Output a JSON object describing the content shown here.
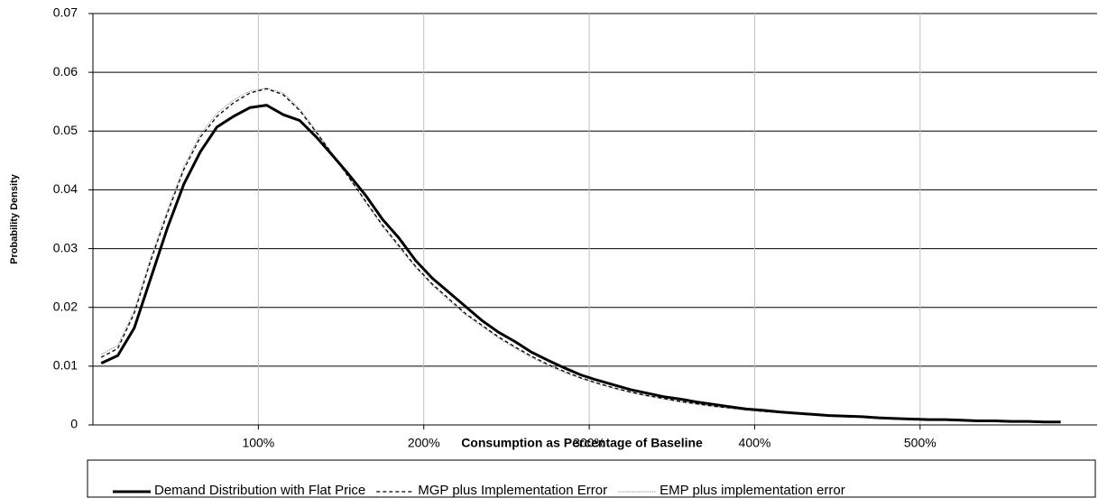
{
  "chart_data": {
    "type": "line",
    "x_label": "Consumption as Percentage of Baseline",
    "y_label": "Probability Density",
    "x": [
      5,
      15,
      25,
      35,
      45,
      55,
      65,
      75,
      85,
      95,
      105,
      115,
      125,
      135,
      145,
      155,
      165,
      175,
      185,
      195,
      205,
      215,
      225,
      235,
      245,
      255,
      265,
      275,
      285,
      295,
      305,
      315,
      325,
      335,
      345,
      355,
      365,
      375,
      385,
      395,
      405,
      415,
      425,
      435,
      445,
      455,
      465,
      475,
      485,
      495,
      505,
      515,
      525,
      535,
      545,
      555,
      565,
      575,
      585
    ],
    "series": [
      {
        "name": "Demand Distribution with Flat Price",
        "color": "#000000",
        "style": "solid",
        "values": [
          0.0105,
          0.0118,
          0.0165,
          0.025,
          0.0335,
          0.041,
          0.0465,
          0.0507,
          0.0525,
          0.054,
          0.0544,
          0.0528,
          0.0518,
          0.049,
          0.0458,
          0.0425,
          0.039,
          0.035,
          0.0318,
          0.028,
          0.025,
          0.0226,
          0.0202,
          0.0178,
          0.0158,
          0.0142,
          0.0124,
          0.011,
          0.0097,
          0.0085,
          0.0076,
          0.0068,
          0.006,
          0.0054,
          0.0048,
          0.0044,
          0.0039,
          0.0035,
          0.0031,
          0.0027,
          0.0025,
          0.0022,
          0.002,
          0.0018,
          0.0016,
          0.0015,
          0.0014,
          0.0012,
          0.0011,
          0.001,
          0.0009,
          0.0009,
          0.0008,
          0.0007,
          0.0007,
          0.0006,
          0.0006,
          0.0005,
          0.0005
        ]
      },
      {
        "name": "MGP plus Implementation Error",
        "color": "#000000",
        "style": "dashed",
        "values": [
          0.0115,
          0.013,
          0.019,
          0.028,
          0.036,
          0.0435,
          0.049,
          0.0525,
          0.0548,
          0.0565,
          0.0572,
          0.0562,
          0.0535,
          0.0498,
          0.046,
          0.042,
          0.038,
          0.034,
          0.0305,
          0.027,
          0.024,
          0.0215,
          0.019,
          0.017,
          0.015,
          0.0133,
          0.0117,
          0.0103,
          0.0091,
          0.008,
          0.0071,
          0.0063,
          0.0056,
          0.005,
          0.0045,
          0.004,
          0.0036,
          0.0032,
          0.0029,
          0.0026,
          0.0023,
          0.0021,
          0.0019,
          0.0017,
          0.0015,
          0.0014,
          0.0013,
          0.0011,
          0.001,
          0.0009,
          0.0009,
          0.0008,
          0.0007,
          0.0007,
          0.0006,
          0.0006,
          0.0005,
          0.0005,
          0.0004
        ]
      },
      {
        "name": "EMP plus implementation error",
        "color": "#999999",
        "style": "dotted",
        "values": [
          0.012,
          0.0135,
          0.0195,
          0.0285,
          0.0365,
          0.044,
          0.0495,
          0.053,
          0.0553,
          0.0568,
          0.0573,
          0.0565,
          0.0538,
          0.05,
          0.046,
          0.042,
          0.0378,
          0.0338,
          0.0302,
          0.0268,
          0.0238,
          0.0212,
          0.0188,
          0.0168,
          0.0148,
          0.0131,
          0.0115,
          0.0101,
          0.0089,
          0.0079,
          0.007,
          0.0062,
          0.0055,
          0.0049,
          0.0044,
          0.0039,
          0.0035,
          0.0031,
          0.0028,
          0.0025,
          0.0023,
          0.0021,
          0.0019,
          0.0017,
          0.0015,
          0.0014,
          0.0013,
          0.0011,
          0.001,
          0.0009,
          0.0009,
          0.0008,
          0.0007,
          0.0007,
          0.0006,
          0.0006,
          0.0005,
          0.0005,
          0.0004
        ]
      }
    ],
    "xlim": [
      0,
      607
    ],
    "ylim": [
      0,
      0.07
    ],
    "xticks": [
      {
        "value": 100,
        "label": "100%"
      },
      {
        "value": 200,
        "label": "200%"
      },
      {
        "value": 300,
        "label": "300%"
      },
      {
        "value": 400,
        "label": "400%"
      },
      {
        "value": 500,
        "label": "500%"
      }
    ],
    "yticks": [
      0,
      0.01,
      0.02,
      0.03,
      0.04,
      0.05,
      0.06,
      0.07
    ],
    "grid": true,
    "legend": "bottom"
  }
}
